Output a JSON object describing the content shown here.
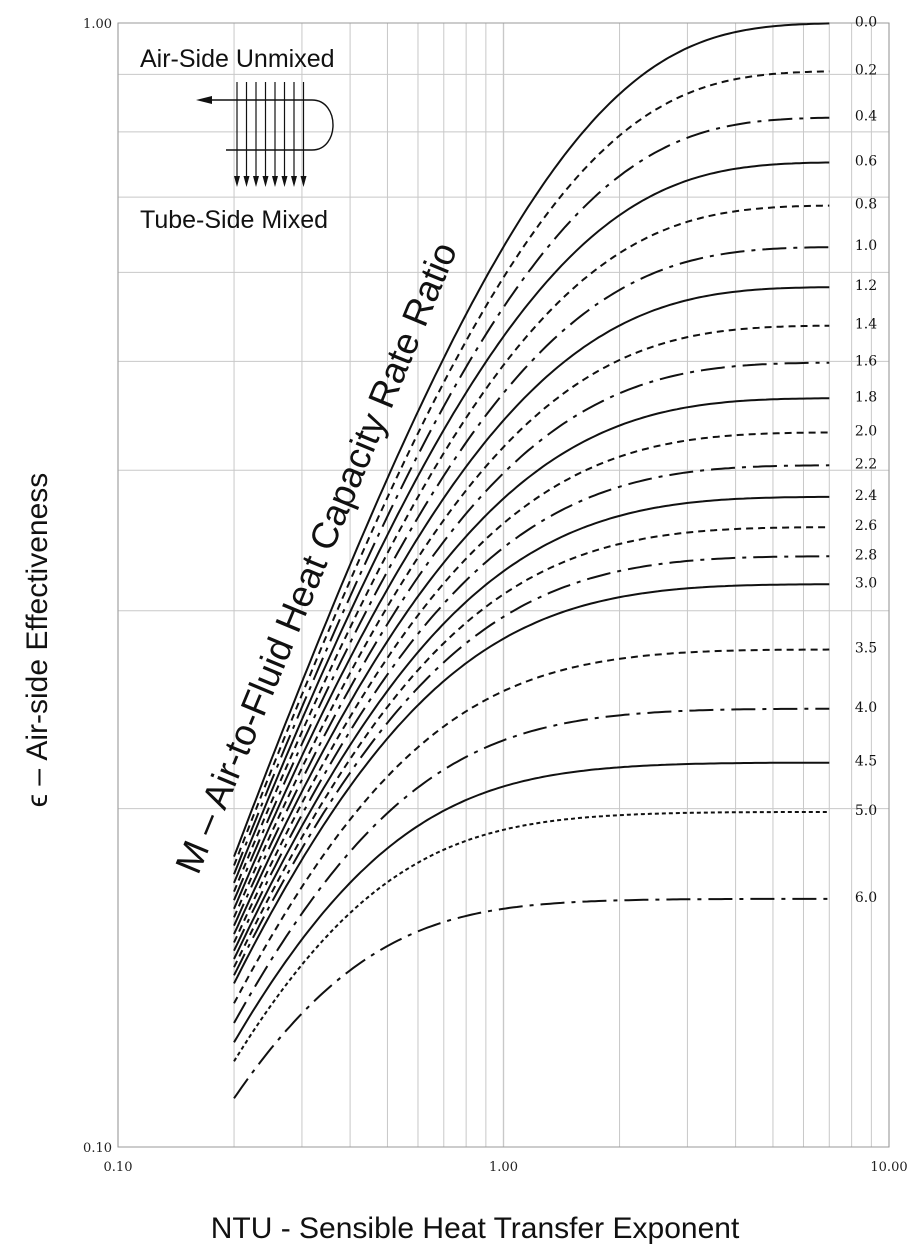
{
  "chart_data": {
    "type": "line",
    "xlabel": "NTU - Sensible Heat Transfer Exponent",
    "ylabel": "ϵ  –  Air-side Effectiveness",
    "diagonal_label": "M – Air-to-Fluid Heat Capacity Rate Ratio",
    "legend_top": "Air-Side Unmixed",
    "legend_bottom": "Tube-Side Mixed",
    "x_scale": "log",
    "y_scale": "log",
    "xlim": [
      0.1,
      10.0
    ],
    "ylim": [
      0.1,
      1.0
    ],
    "grid": true,
    "x_ticks": [
      {
        "value": 0.1,
        "label": "0.10"
      },
      {
        "value": 1.0,
        "label": "1.00"
      },
      {
        "value": 10.0,
        "label": "10.00"
      }
    ],
    "y_ticks": [
      {
        "value": 0.1,
        "label": "0.10"
      },
      {
        "value": 1.0,
        "label": "1.00"
      }
    ],
    "ntu_range": [
      0.2,
      7.0
    ],
    "series": [
      {
        "name": "0.0",
        "dash": "solid"
      },
      {
        "name": "0.2",
        "dash": "dash"
      },
      {
        "name": "0.4",
        "dash": "dashdot"
      },
      {
        "name": "0.6",
        "dash": "solid"
      },
      {
        "name": "0.8",
        "dash": "dash"
      },
      {
        "name": "1.0",
        "dash": "dashdot"
      },
      {
        "name": "1.2",
        "dash": "solid"
      },
      {
        "name": "1.4",
        "dash": "dash"
      },
      {
        "name": "1.6",
        "dash": "dashdot"
      },
      {
        "name": "1.8",
        "dash": "solid"
      },
      {
        "name": "2.0",
        "dash": "dash"
      },
      {
        "name": "2.2",
        "dash": "dashdot"
      },
      {
        "name": "2.4",
        "dash": "solid"
      },
      {
        "name": "2.6",
        "dash": "dash"
      },
      {
        "name": "2.8",
        "dash": "dashdot"
      },
      {
        "name": "3.0",
        "dash": "solid"
      },
      {
        "name": "3.5",
        "dash": "dash"
      },
      {
        "name": "4.0",
        "dash": "dashdot"
      },
      {
        "name": "4.5",
        "dash": "solid"
      },
      {
        "name": "5.0",
        "dash": "fine"
      },
      {
        "name": "6.0",
        "dash": "dashdot"
      }
    ],
    "line_color": "#111111",
    "grid_color": "#c8c8c8"
  }
}
